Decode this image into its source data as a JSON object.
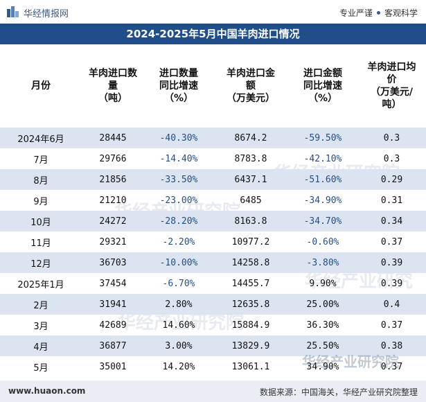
{
  "header": {
    "brand": "华经情报网",
    "slogan_left": "专业严谨",
    "slogan_right": "客观科学",
    "logo_icon": "huajing-logo-icon"
  },
  "title": "2024-2025年5月中国羊肉进口情况",
  "columns": [
    "月份",
    "羊肉进口数量（吨）",
    "进口数量同比增速（%）",
    "羊肉进口金额（万美元）",
    "进口金额同比增速（%）",
    "羊肉进口均价（万美元/吨）"
  ],
  "column_lines": [
    [
      "月份"
    ],
    [
      "羊肉进口数",
      "量",
      "（吨）"
    ],
    [
      "进口数量",
      "同比增速",
      "（%）"
    ],
    [
      "羊肉进口金",
      "额",
      "（万美元）"
    ],
    [
      "进口金额",
      "同比增速",
      "（%）"
    ],
    [
      "羊肉进口均",
      "价",
      "（万美元/",
      "吨）"
    ]
  ],
  "rows": [
    [
      "2024年6月",
      "28445",
      "-40.30%",
      "8674.2",
      "-59.50%",
      "0.3"
    ],
    [
      "7月",
      "29766",
      "-14.40%",
      "8783.8",
      "-42.10%",
      "0.3"
    ],
    [
      "8月",
      "21856",
      "-33.50%",
      "6437.1",
      "-51.60%",
      "0.29"
    ],
    [
      "9月",
      "21210",
      "-23.00%",
      "6485",
      "-34.90%",
      "0.31"
    ],
    [
      "10月",
      "24272",
      "-28.20%",
      "8163.8",
      "-34.70%",
      "0.34"
    ],
    [
      "11月",
      "29321",
      "-2.20%",
      "10977.2",
      "-0.60%",
      "0.37"
    ],
    [
      "12月",
      "36703",
      "-10.00%",
      "14258.8",
      "-3.80%",
      "0.39"
    ],
    [
      "2025年1月",
      "37454",
      "-6.70%",
      "14455.7",
      "9.90%",
      "0.39"
    ],
    [
      "2月",
      "31941",
      "2.80%",
      "12635.8",
      "25.00%",
      "0.4"
    ],
    [
      "3月",
      "42689",
      "14.60%",
      "15884.9",
      "36.30%",
      "0.37"
    ],
    [
      "4月",
      "36877",
      "3.00%",
      "13829.9",
      "25.50%",
      "0.38"
    ],
    [
      "5月",
      "35001",
      "14.20%",
      "13061.1",
      "34.90%",
      "0.37"
    ]
  ],
  "watermark": "华经产业研究院",
  "footer": {
    "site": "www.huaon.com",
    "source": "数据来源：中国海关，华经产业研究院整理"
  },
  "colors": {
    "title_bar": "#1f4e89",
    "row_shade": "#dbe4f0",
    "negative_pct": "#1f4e89"
  }
}
